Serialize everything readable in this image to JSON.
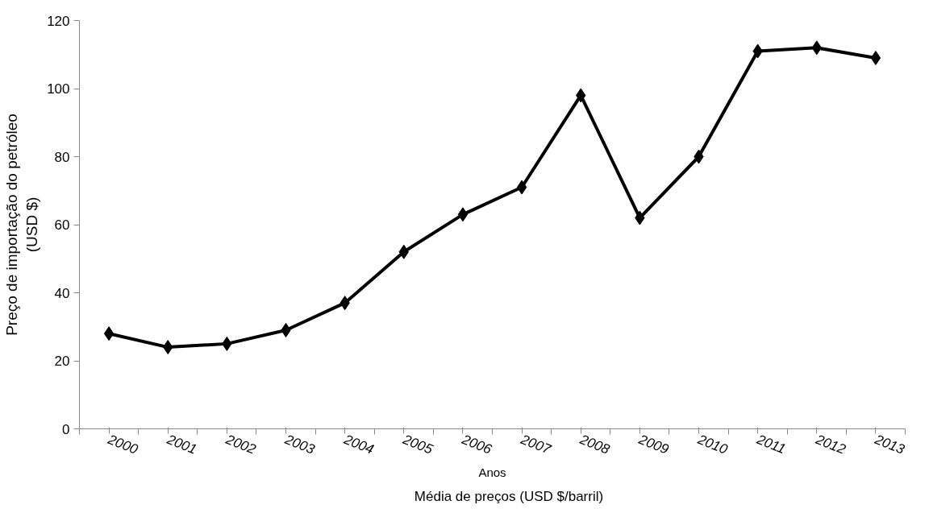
{
  "chart_data": {
    "type": "line",
    "xlabel": "Anos",
    "ylabel": "Preço de importação do petróleo\n(USD $)",
    "categories": [
      "2000",
      "2001",
      "2002",
      "2003",
      "2004",
      "2005",
      "2006",
      "2007",
      "2008",
      "2009",
      "2010",
      "2011",
      "2012",
      "2013"
    ],
    "series": [
      {
        "name": "Média de preços (USD $/barril)",
        "color": "#000000",
        "values": [
          28,
          24,
          25,
          29,
          37,
          52,
          63,
          71,
          98,
          62,
          80,
          111,
          112,
          109
        ]
      }
    ],
    "ylim": [
      0,
      120
    ],
    "yticks": [
      0,
      20,
      40,
      60,
      80,
      100,
      120
    ],
    "marker": "diamond",
    "line_style": "solid",
    "grid": false,
    "legend": "bottom"
  }
}
